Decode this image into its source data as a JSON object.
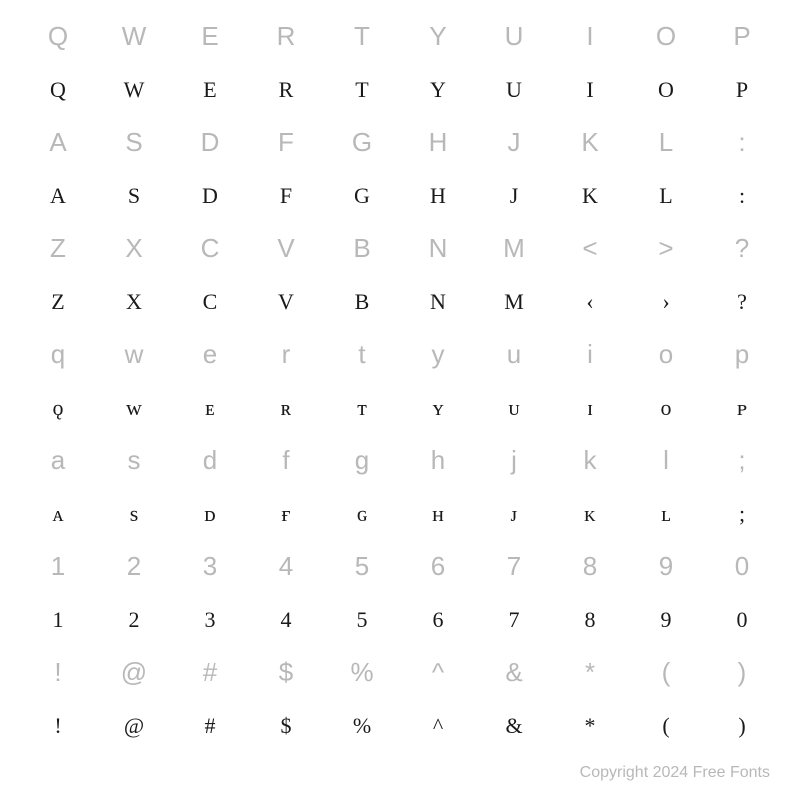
{
  "chart": {
    "type": "font-specimen",
    "background_color": "#ffffff",
    "reference_color": "#b8b8b8",
    "font_color": "#1a1a1a",
    "reference_font": "sans-serif",
    "display_font": "serif-smallcaps",
    "rows": [
      {
        "reference": [
          "Q",
          "W",
          "E",
          "R",
          "T",
          "Y",
          "U",
          "I",
          "O",
          "P"
        ],
        "display": [
          "Q",
          "W",
          "E",
          "R",
          "T",
          "Y",
          "U",
          "I",
          "O",
          "P"
        ]
      },
      {
        "reference": [
          "A",
          "S",
          "D",
          "F",
          "G",
          "H",
          "J",
          "K",
          "L",
          ":"
        ],
        "display": [
          "A",
          "S",
          "D",
          "F",
          "G",
          "H",
          "J",
          "K",
          "L",
          ":"
        ]
      },
      {
        "reference": [
          "Z",
          "X",
          "C",
          "V",
          "B",
          "N",
          "M",
          "<",
          ">",
          "?"
        ],
        "display": [
          "Z",
          "X",
          "C",
          "V",
          "B",
          "N",
          "M",
          "‹",
          "›",
          "?"
        ]
      },
      {
        "reference": [
          "q",
          "w",
          "e",
          "r",
          "t",
          "y",
          "u",
          "i",
          "o",
          "p"
        ],
        "display": [
          "ǫ",
          "ᴡ",
          "ᴇ",
          "ʀ",
          "ᴛ",
          "ʏ",
          "ᴜ",
          "ɪ",
          "ᴏ",
          "ᴘ"
        ]
      },
      {
        "reference": [
          "a",
          "s",
          "d",
          "f",
          "g",
          "h",
          "j",
          "k",
          "l",
          ";"
        ],
        "display": [
          "ᴀ",
          "s",
          "ᴅ",
          "ғ",
          "ɢ",
          "ʜ",
          "ᴊ",
          "ᴋ",
          "ʟ",
          ";"
        ]
      },
      {
        "reference": [
          "1",
          "2",
          "3",
          "4",
          "5",
          "6",
          "7",
          "8",
          "9",
          "0"
        ],
        "display": [
          "1",
          "2",
          "3",
          "4",
          "5",
          "6",
          "7",
          "8",
          "9",
          "0"
        ]
      },
      {
        "reference": [
          "!",
          "@",
          "#",
          "$",
          "%",
          "^",
          "&",
          "*",
          "(",
          ")"
        ],
        "display": [
          "!",
          "@",
          "#",
          "$",
          "%",
          "^",
          "&",
          "*",
          "(",
          ")"
        ]
      }
    ]
  },
  "copyright": "Copyright 2024 Free Fonts"
}
